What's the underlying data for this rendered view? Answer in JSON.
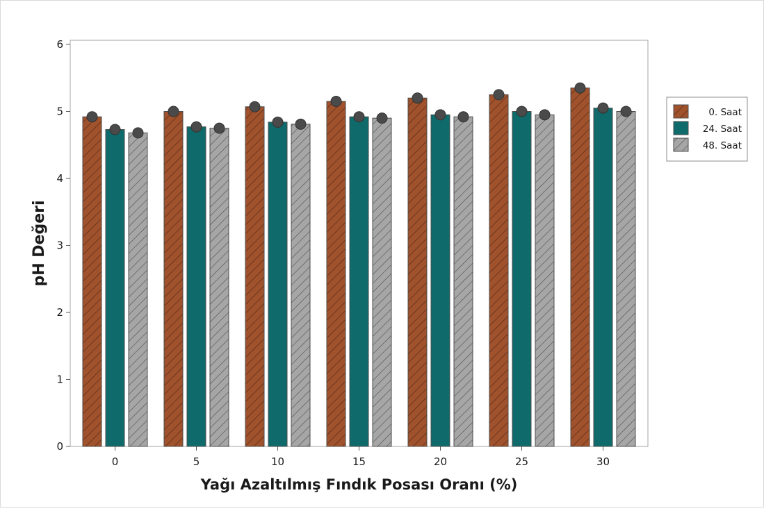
{
  "chart_data": {
    "type": "bar",
    "title": "",
    "xlabel": "Yağı Azaltılmış Fındık Posası Oranı (%)",
    "ylabel": "pH Değeri",
    "categories": [
      "0",
      "5",
      "10",
      "15",
      "20",
      "25",
      "30"
    ],
    "ylim": [
      0,
      6
    ],
    "yticks": [
      "0",
      "1",
      "2",
      "3",
      "4",
      "5",
      "6"
    ],
    "grid": false,
    "legend_position": "right",
    "series": [
      {
        "name": "0. Saat",
        "values": [
          4.92,
          5.0,
          5.07,
          5.15,
          5.2,
          5.25,
          5.35
        ],
        "color": "#a0522d",
        "pattern": "hatch"
      },
      {
        "name": "24. Saat",
        "values": [
          4.73,
          4.77,
          4.84,
          4.92,
          4.95,
          5.0,
          5.05
        ],
        "color": "#0f6b6b",
        "pattern": "solid"
      },
      {
        "name": "48. Saat",
        "values": [
          4.68,
          4.75,
          4.81,
          4.9,
          4.92,
          4.95,
          5.0
        ],
        "color": "#a6a6a6",
        "pattern": "hatch"
      }
    ]
  }
}
